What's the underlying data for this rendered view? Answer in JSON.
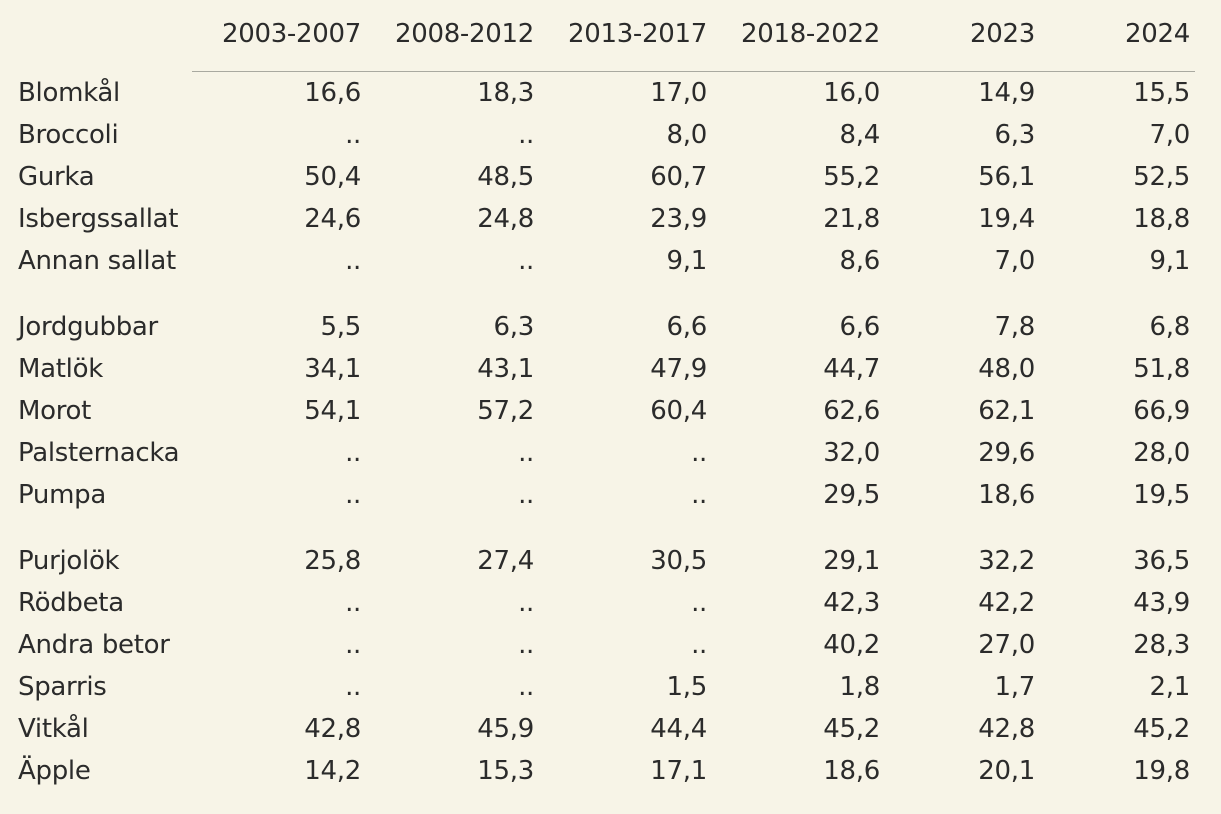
{
  "chart_data": {
    "type": "table",
    "columns": [
      "2003-2007",
      "2008-2012",
      "2013-2017",
      "2018-2022",
      "2023",
      "2024"
    ],
    "groups": [
      {
        "rows": [
          {
            "label": "Blomkål",
            "values": [
              "16,6",
              "18,3",
              "17,0",
              "16,0",
              "14,9",
              "15,5"
            ]
          },
          {
            "label": "Broccoli",
            "values": [
              "..",
              "..",
              "8,0",
              "8,4",
              "6,3",
              "7,0"
            ]
          },
          {
            "label": "Gurka",
            "values": [
              "50,4",
              "48,5",
              "60,7",
              "55,2",
              "56,1",
              "52,5"
            ]
          },
          {
            "label": "Isbergssallat",
            "values": [
              "24,6",
              "24,8",
              "23,9",
              "21,8",
              "19,4",
              "18,8"
            ]
          },
          {
            "label": "Annan sallat",
            "values": [
              "..",
              "..",
              "9,1",
              "8,6",
              "7,0",
              "9,1"
            ]
          }
        ]
      },
      {
        "rows": [
          {
            "label": "Jordgubbar",
            "values": [
              "5,5",
              "6,3",
              "6,6",
              "6,6",
              "7,8",
              "6,8"
            ]
          },
          {
            "label": "Matlök",
            "values": [
              "34,1",
              "43,1",
              "47,9",
              "44,7",
              "48,0",
              "51,8"
            ]
          },
          {
            "label": "Morot",
            "values": [
              "54,1",
              "57,2",
              "60,4",
              "62,6",
              "62,1",
              "66,9"
            ]
          },
          {
            "label": "Palsternacka",
            "values": [
              "..",
              "..",
              "..",
              "32,0",
              "29,6",
              "28,0"
            ]
          },
          {
            "label": "Pumpa",
            "values": [
              "..",
              "..",
              "..",
              "29,5",
              "18,6",
              "19,5"
            ]
          }
        ]
      },
      {
        "rows": [
          {
            "label": "Purjolök",
            "values": [
              "25,8",
              "27,4",
              "30,5",
              "29,1",
              "32,2",
              "36,5"
            ]
          },
          {
            "label": "Rödbeta",
            "values": [
              "..",
              "..",
              "..",
              "42,3",
              "42,2",
              "43,9"
            ]
          },
          {
            "label": "Andra betor",
            "values": [
              "..",
              "..",
              "..",
              "40,2",
              "27,0",
              "28,3"
            ]
          },
          {
            "label": "Sparris",
            "values": [
              "..",
              "..",
              "1,5",
              "1,8",
              "1,7",
              "2,1"
            ]
          },
          {
            "label": "Vitkål",
            "values": [
              "42,8",
              "45,9",
              "44,4",
              "45,2",
              "42,8",
              "45,2"
            ]
          },
          {
            "label": "Äpple",
            "values": [
              "14,2",
              "15,3",
              "17,1",
              "18,6",
              "20,1",
              "19,8"
            ]
          }
        ]
      }
    ],
    "colors": {
      "background": "#f7f4e7",
      "text": "#2b2b2b",
      "rule": "#a9a9a0"
    }
  }
}
